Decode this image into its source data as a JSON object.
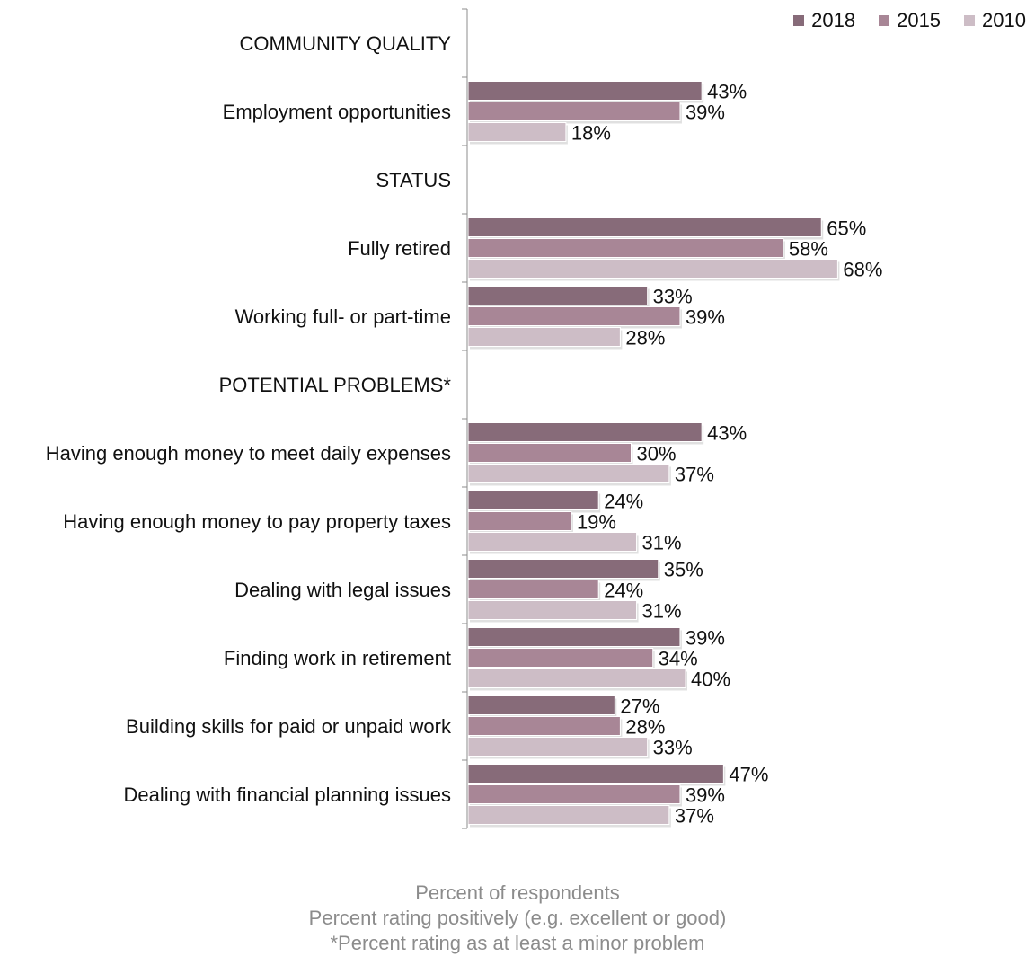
{
  "chart_data": {
    "type": "bar",
    "orientation": "horizontal",
    "legend_position": "top-right",
    "grid": false,
    "xlim": [
      0,
      100
    ],
    "series": [
      {
        "name": "2018",
        "color": "#876b79"
      },
      {
        "name": "2015",
        "color": "#a88696"
      },
      {
        "name": "2010",
        "color": "#cdbdc6"
      }
    ],
    "rows": [
      {
        "label": "COMMUNITY QUALITY",
        "header": true
      },
      {
        "label": "Employment opportunities",
        "values": [
          43,
          39,
          18
        ],
        "labels": [
          "43%",
          "39%",
          "18%"
        ]
      },
      {
        "label": "STATUS",
        "header": true
      },
      {
        "label": "Fully retired",
        "values": [
          65,
          58,
          68
        ],
        "labels": [
          "65%",
          "58%",
          "68%"
        ]
      },
      {
        "label": "Working full- or part-time",
        "values": [
          33,
          39,
          28
        ],
        "labels": [
          "33%",
          "39%",
          "28%"
        ]
      },
      {
        "label": "POTENTIAL PROBLEMS*",
        "header": true
      },
      {
        "label": "Having enough money to meet daily expenses",
        "values": [
          43,
          30,
          37
        ],
        "labels": [
          "43%",
          "30%",
          "37%"
        ]
      },
      {
        "label": "Having enough money to pay property taxes",
        "values": [
          24,
          19,
          31
        ],
        "labels": [
          "24%",
          "19%",
          "31%"
        ]
      },
      {
        "label": "Dealing with legal issues",
        "values": [
          35,
          24,
          31
        ],
        "labels": [
          "35%",
          "24%",
          "31%"
        ]
      },
      {
        "label": "Finding work in retirement",
        "values": [
          39,
          34,
          40
        ],
        "labels": [
          "39%",
          "34%",
          "40%"
        ]
      },
      {
        "label": "Building skills for paid or unpaid work",
        "values": [
          27,
          28,
          33
        ],
        "labels": [
          "27%",
          "28%",
          "33%"
        ]
      },
      {
        "label": "Dealing with financial planning issues",
        "values": [
          47,
          39,
          37
        ],
        "labels": [
          "47%",
          "39%",
          "37%"
        ]
      }
    ],
    "notes": [
      "Percent of respondents",
      "Percent rating positively (e.g. excellent or good)",
      "*Percent rating as at least a minor problem"
    ]
  }
}
